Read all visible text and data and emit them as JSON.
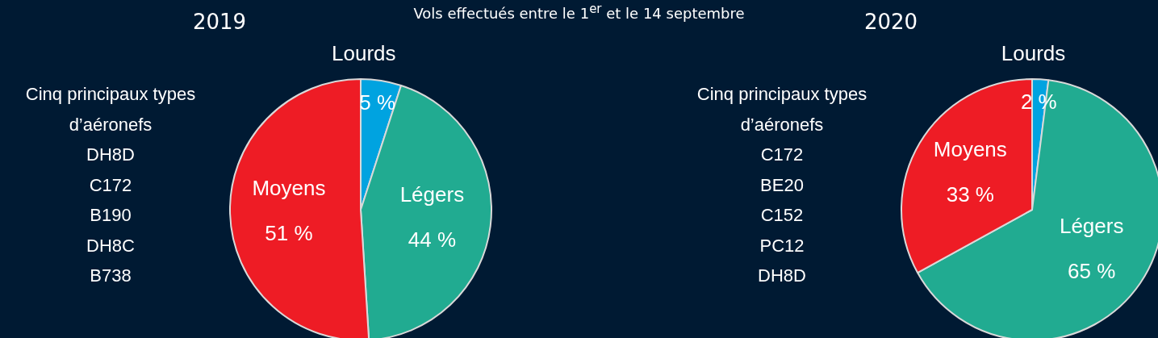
{
  "chart_data": [
    {
      "type": "other",
      "title": "Vols effectués entre le 1$^{er}$ et le 14 septembre"
    },
    {
      "type": "pie",
      "title": "2019",
      "categories": [
        "Lourds",
        "Légers",
        "Moyens"
      ],
      "values": [
        5,
        44,
        51
      ],
      "colors": [
        "#00a3e0",
        "#21ab91",
        "#ee1c25"
      ],
      "value_labels": [
        "5 %",
        "44 %",
        "51 %"
      ],
      "annotations": [
        "Cinq principaux types d’aéronefs",
        "DH8D",
        "C172",
        "B190",
        "DH8C",
        "B738"
      ]
    },
    {
      "type": "pie",
      "title": "2020",
      "categories": [
        "Lourds",
        "Légers",
        "Moyens"
      ],
      "values": [
        2,
        65,
        33
      ],
      "colors": [
        "#00a3e0",
        "#21ab91",
        "#ee1c25"
      ],
      "value_labels": [
        "2 %",
        "65 %",
        "33 %"
      ],
      "annotations": [
        "Cinq principaux types d’aéronefs",
        "C172",
        "BE20",
        "C152",
        "PC12",
        "DH8D"
      ]
    }
  ]
}
